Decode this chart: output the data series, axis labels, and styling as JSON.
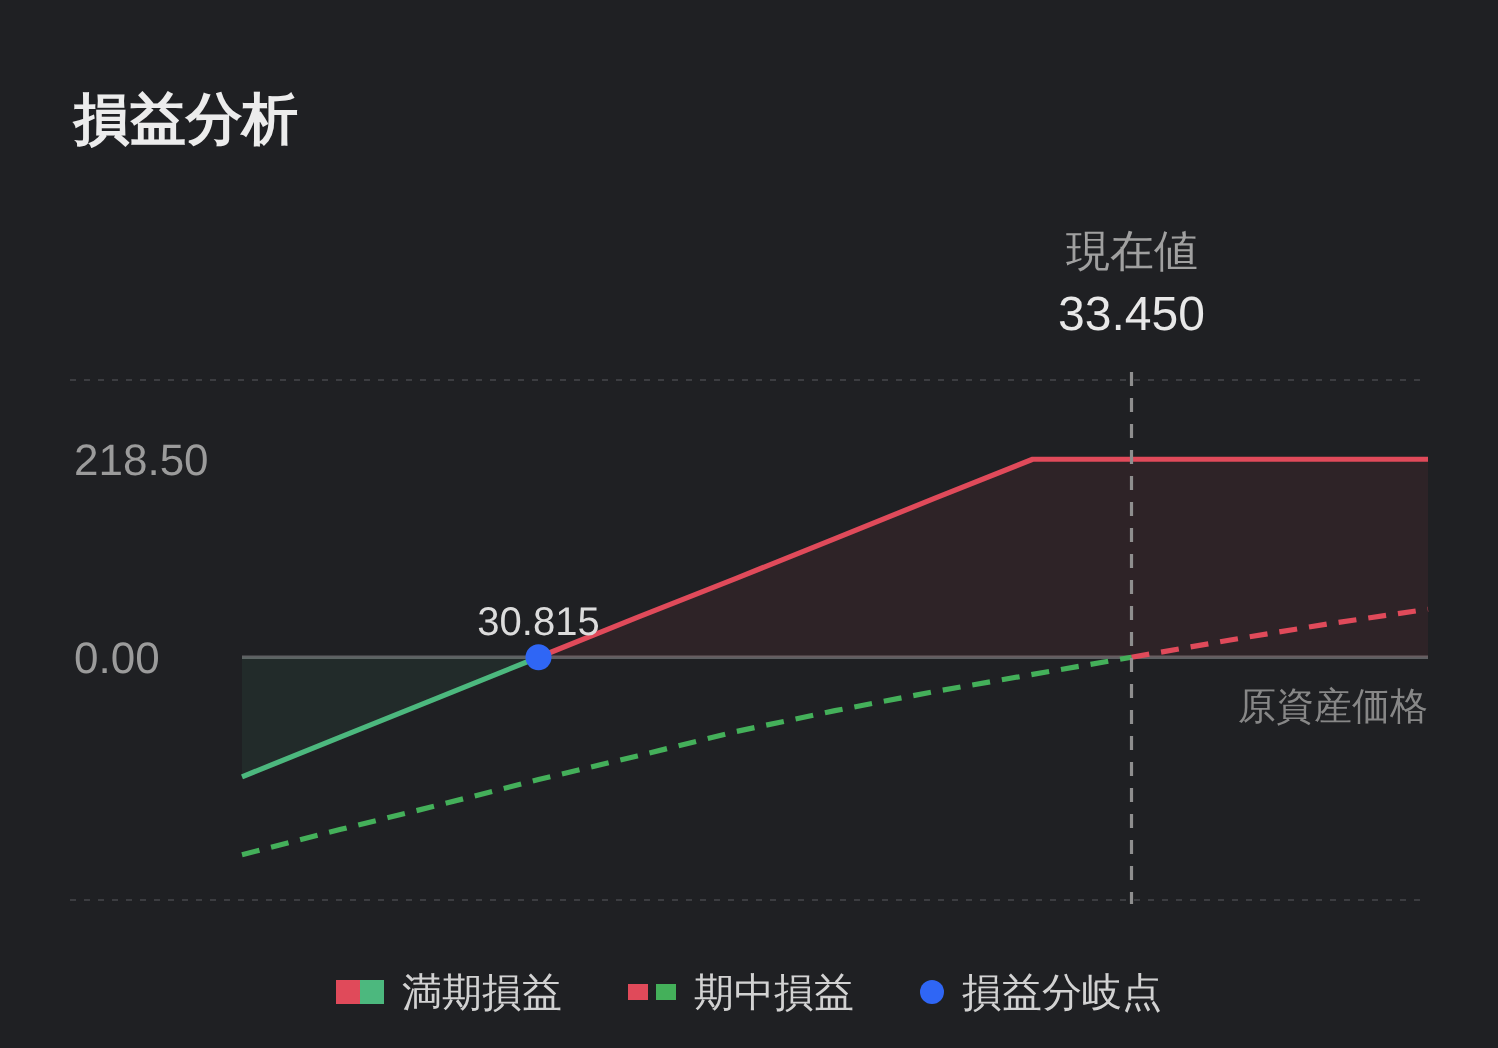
{
  "chart_data": {
    "type": "line",
    "title": "損益分析",
    "xlabel": "原資産価格",
    "categories": [
      null,
      null,
      null,
      null,
      null,
      null,
      null,
      null,
      null,
      null,
      null,
      null,
      null
    ],
    "ylim": [
      -268,
      306
    ],
    "yticks": [
      {
        "value": 218.5,
        "label": "218.50"
      },
      {
        "value": 0,
        "label": "0.00"
      }
    ],
    "legend": "bottom",
    "series": [
      {
        "type": "area",
        "color": "#e04a5a",
        "values": [
          null,
          null,
          null,
          0,
          44,
          87,
          131,
          175,
          218.5,
          218.5,
          218.5,
          218.5,
          218.5
        ]
      },
      {
        "name": "満期損益",
        "type": "area",
        "color": "#4cb87e",
        "values": [
          -132,
          -88,
          -44,
          0,
          null,
          null,
          null,
          null,
          null,
          null,
          null,
          null,
          null
        ]
      },
      {
        "type": "line",
        "line_style": "dashed",
        "color": "#e04a5a",
        "values": [
          null,
          null,
          null,
          null,
          null,
          null,
          null,
          null,
          null,
          0,
          19,
          37,
          53
        ]
      },
      {
        "name": "期中損益",
        "type": "line",
        "line_style": "dashed",
        "color": "#44b05a",
        "values": [
          -218,
          -190,
          -163,
          -135,
          -109,
          -82,
          -59,
          -38,
          -19,
          0,
          null,
          null,
          null
        ]
      },
      {
        "name": "損益分岐点",
        "type": "scatter",
        "marker": "circle",
        "color": "#2f66f5",
        "values": [
          null,
          null,
          null,
          0,
          null,
          null,
          null,
          null,
          null,
          null,
          null,
          null,
          null
        ]
      }
    ],
    "annotations": [
      "現在値\n33.450",
      {
        "text": "30.815",
        "y": 0
      }
    ]
  }
}
